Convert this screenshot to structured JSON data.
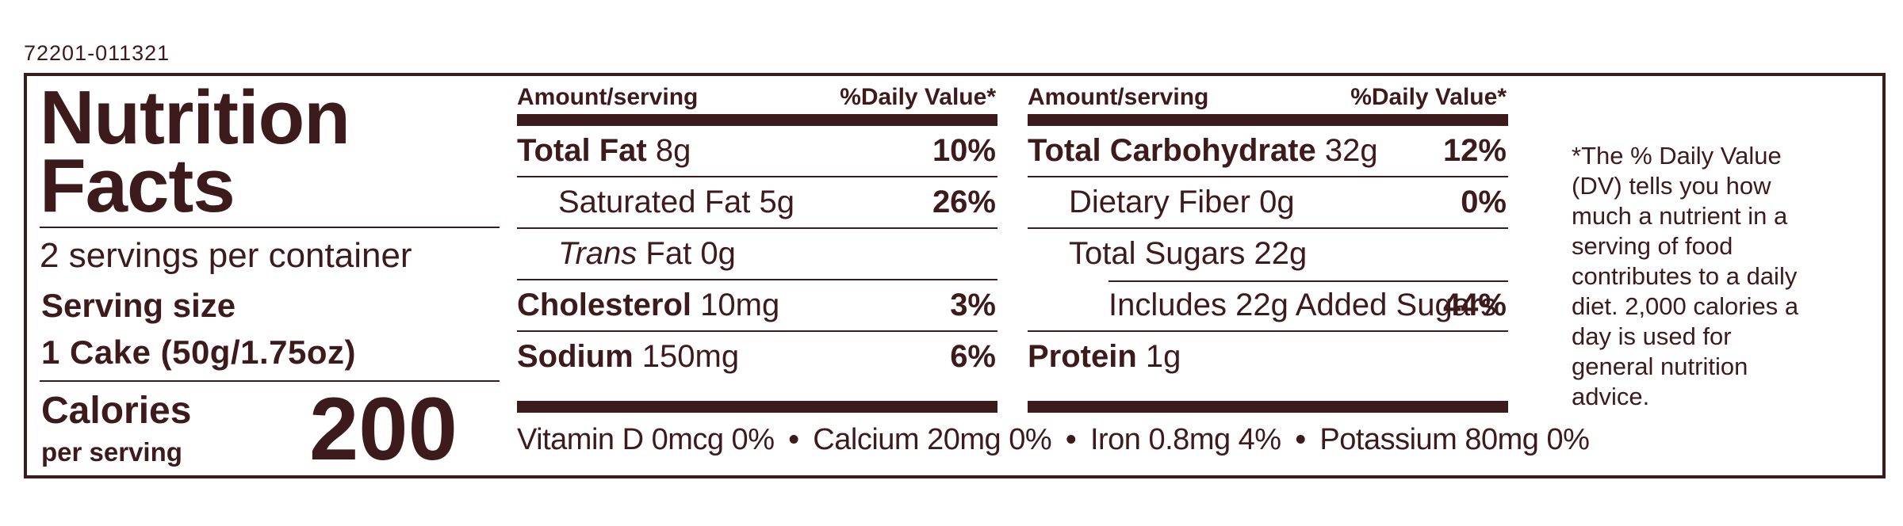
{
  "label_code": "72201-011321",
  "title_line1": "Nutrition",
  "title_line2": "Facts",
  "servings_per_container": "2 servings per container",
  "serving_size_label": "Serving size",
  "serving_size_value": "1 Cake (50g/1.75oz)",
  "calories_label": "Calories",
  "calories_sub": "per serving",
  "calories_value": "200",
  "column_headers": {
    "amount": "Amount/serving",
    "dv": "%Daily Value*"
  },
  "left_nutrients": [
    {
      "name": "Total Fat",
      "amount": "8g",
      "dv": "10%"
    },
    {
      "name": "Saturated Fat",
      "amount": "5g",
      "dv": "26%"
    },
    {
      "name_italic": "Trans",
      "name": "Fat",
      "amount": "0g",
      "dv": ""
    },
    {
      "name": "Cholesterol",
      "amount": "10mg",
      "dv": "3%"
    },
    {
      "name": "Sodium",
      "amount": "150mg",
      "dv": "6%"
    }
  ],
  "right_nutrients": [
    {
      "name": "Total Carbohydrate",
      "amount": "32g",
      "dv": "12%"
    },
    {
      "name": "Dietary Fiber",
      "amount": "0g",
      "dv": "0%"
    },
    {
      "name": "Total Sugars",
      "amount": "22g",
      "dv": ""
    },
    {
      "name": "Includes 22g Added Sugars",
      "amount": "",
      "dv": "44%"
    },
    {
      "name": "Protein",
      "amount": "1g",
      "dv": ""
    }
  ],
  "vitamins": [
    "Vitamin D 0mcg 0%",
    "Calcium 20mg 0%",
    "Iron 0.8mg 4%",
    "Potassium 80mg 0%"
  ],
  "bullet": "•",
  "footnote": "*The % Daily Value (DV) tells you how much a nutrient in a serving of food contributes to a daily diet. 2,000 calories a day is used for general nutrition advice."
}
